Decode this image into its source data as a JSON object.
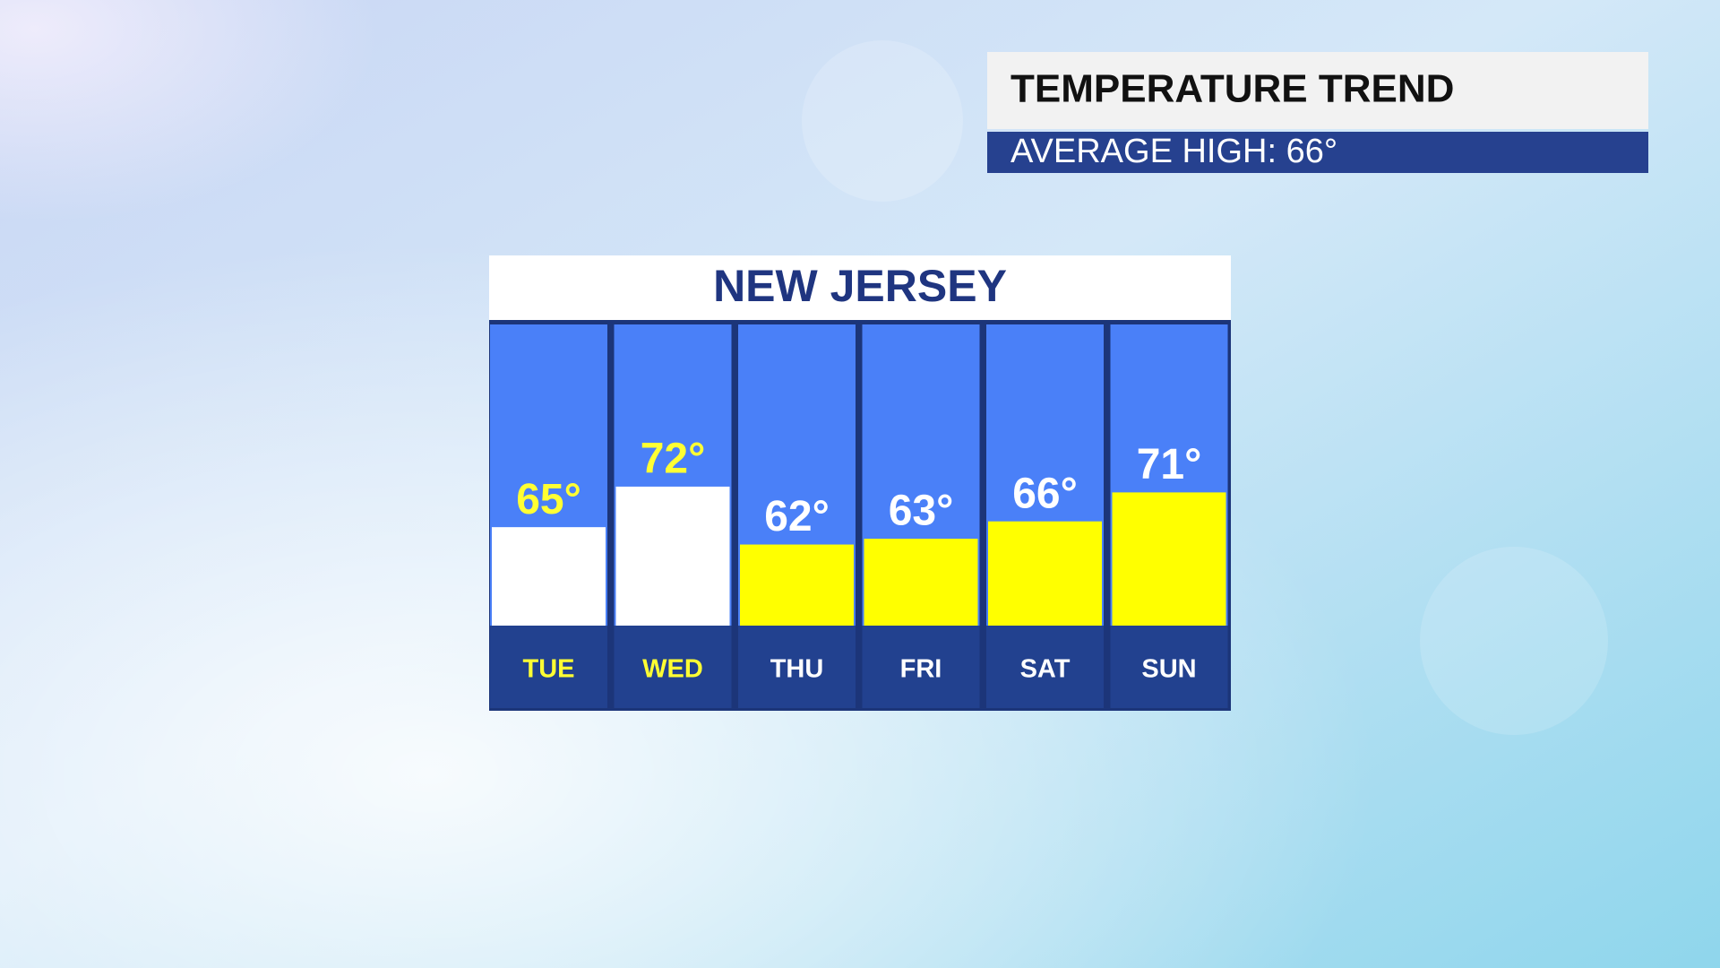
{
  "header": {
    "title": "TEMPERATURE TREND",
    "subtitle": "AVERAGE HIGH: 66°"
  },
  "chart_data": {
    "type": "bar",
    "title": "NEW JERSEY",
    "categories": [
      "TUE",
      "WED",
      "THU",
      "FRI",
      "SAT",
      "SUN"
    ],
    "values": [
      65,
      72,
      62,
      63,
      66,
      71
    ],
    "value_labels": [
      "65°",
      "72°",
      "62°",
      "63°",
      "66°",
      "71°"
    ],
    "colors": [
      "#ffffff",
      "#ffffff",
      "#ffff00",
      "#ffff00",
      "#ffff00",
      "#ffff00"
    ],
    "label_colors": [
      "#ffff33",
      "#ffff33",
      "#ffffff",
      "#ffffff",
      "#ffffff",
      "#ffffff"
    ],
    "ylim": [
      48,
      100
    ]
  }
}
